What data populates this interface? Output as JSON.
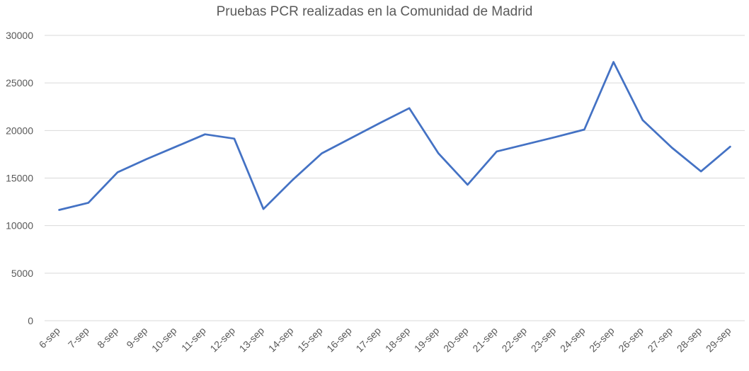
{
  "chart_data": {
    "type": "line",
    "title": "Pruebas PCR realizadas en la Comunidad de Madrid",
    "categories": [
      "6-sep",
      "7-sep",
      "8-sep",
      "9-sep",
      "10-sep",
      "11-sep",
      "12-sep",
      "13-sep",
      "14-sep",
      "15-sep",
      "16-sep",
      "17-sep",
      "18-sep",
      "19-sep",
      "20-sep",
      "21-sep",
      "22-sep",
      "23-sep",
      "24-sep",
      "25-sep",
      "26-sep",
      "27-sep",
      "28-sep",
      "29-sep"
    ],
    "series": [
      {
        "values": [
          11650,
          12400,
          15600,
          17000,
          18300,
          19600,
          19150,
          11750,
          14800,
          17600,
          19200,
          20800,
          22350,
          17600,
          14300,
          17800,
          18550,
          19300,
          20100,
          27200,
          21100,
          18200,
          15700,
          18300
        ],
        "color": "#4472c4"
      }
    ],
    "ylim": [
      0,
      30000
    ],
    "yticks": [
      0,
      5000,
      10000,
      15000,
      20000,
      25000,
      30000
    ],
    "grid": true,
    "legend": "none"
  }
}
